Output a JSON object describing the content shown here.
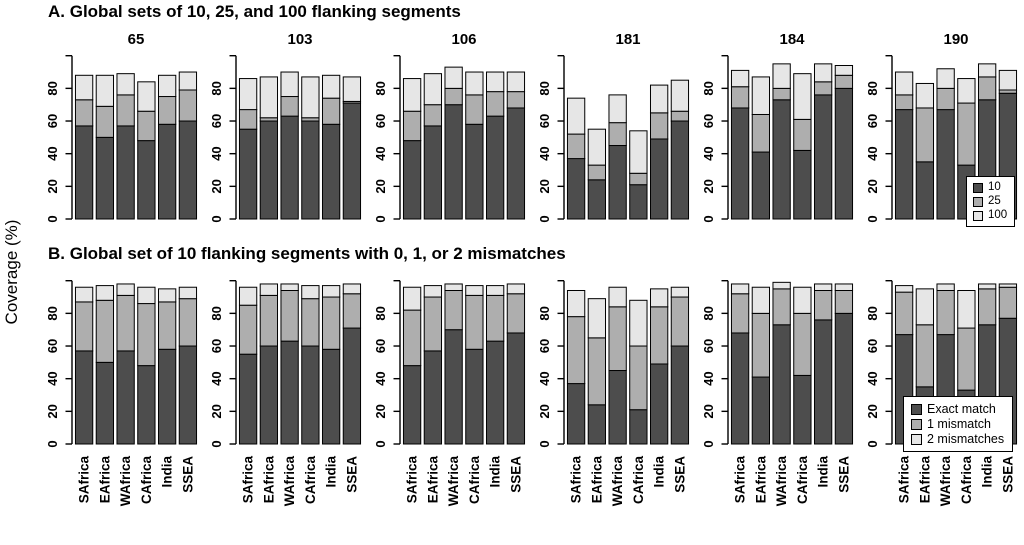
{
  "y_axis_label": "Coverage (%)",
  "colors": {
    "series_dark": "#4D4D4D",
    "series_mid": "#AEAEAE",
    "series_light": "#E6E6E6",
    "bar_border": "#000000",
    "background": "#FFFFFF"
  },
  "panels": [
    {
      "title": "A. Global sets of 10, 25, and 100 flanking segments",
      "legend": [
        "10",
        "25",
        "100"
      ]
    },
    {
      "title": "B. Global set of 10 flanking segments with 0, 1, or 2 mismatches",
      "legend": [
        "Exact match",
        "1 mismatch",
        "2 mismatches"
      ]
    }
  ],
  "chart_data": [
    {
      "type": "bar",
      "stacked": true,
      "panel": "A",
      "panel_title": "A. Global sets of 10, 25, and 100 flanking segments",
      "ylabel": "Coverage (%)",
      "ylim": [
        0,
        100
      ],
      "yticks": [
        0,
        20,
        40,
        60,
        80
      ],
      "grid": false,
      "legend_position": "bottom-right of last subplot",
      "categories": [
        "SAfrica",
        "EAfrica",
        "WAfrica",
        "CAfrica",
        "India",
        "SSEA"
      ],
      "series_names": [
        "10",
        "25",
        "100"
      ],
      "subplots": [
        {
          "title": "65",
          "series": [
            {
              "name": "10",
              "values": [
                57,
                50,
                57,
                48,
                58,
                60
              ]
            },
            {
              "name": "25",
              "values": [
                16,
                19,
                19,
                18,
                17,
                19
              ]
            },
            {
              "name": "100",
              "values": [
                15,
                19,
                13,
                18,
                13,
                11
              ]
            }
          ],
          "stack_totals": [
            88,
            88,
            89,
            84,
            88,
            90
          ]
        },
        {
          "title": "103",
          "series": [
            {
              "name": "10",
              "values": [
                55,
                60,
                63,
                60,
                58,
                71
              ]
            },
            {
              "name": "25",
              "values": [
                12,
                2,
                12,
                2,
                16,
                1
              ]
            },
            {
              "name": "100",
              "values": [
                19,
                25,
                15,
                25,
                14,
                15
              ]
            }
          ],
          "stack_totals": [
            86,
            87,
            90,
            87,
            88,
            87
          ]
        },
        {
          "title": "106",
          "series": [
            {
              "name": "10",
              "values": [
                48,
                57,
                70,
                58,
                63,
                68
              ]
            },
            {
              "name": "25",
              "values": [
                18,
                13,
                10,
                18,
                15,
                10
              ]
            },
            {
              "name": "100",
              "values": [
                20,
                19,
                13,
                14,
                12,
                12
              ]
            }
          ],
          "stack_totals": [
            86,
            89,
            93,
            90,
            90,
            90
          ]
        },
        {
          "title": "181",
          "series": [
            {
              "name": "10",
              "values": [
                37,
                24,
                45,
                21,
                49,
                60
              ]
            },
            {
              "name": "25",
              "values": [
                15,
                9,
                14,
                7,
                16,
                6
              ]
            },
            {
              "name": "100",
              "values": [
                22,
                22,
                17,
                26,
                17,
                19
              ]
            }
          ],
          "stack_totals": [
            74,
            55,
            76,
            54,
            82,
            85
          ]
        },
        {
          "title": "184",
          "series": [
            {
              "name": "10",
              "values": [
                68,
                41,
                73,
                42,
                76,
                80
              ]
            },
            {
              "name": "25",
              "values": [
                13,
                23,
                7,
                19,
                8,
                8
              ]
            },
            {
              "name": "100",
              "values": [
                10,
                23,
                15,
                28,
                11,
                6
              ]
            }
          ],
          "stack_totals": [
            91,
            87,
            95,
            89,
            95,
            94
          ]
        },
        {
          "title": "190",
          "series": [
            {
              "name": "10",
              "values": [
                67,
                35,
                67,
                33,
                73,
                77
              ]
            },
            {
              "name": "25",
              "values": [
                9,
                33,
                13,
                38,
                14,
                2
              ]
            },
            {
              "name": "100",
              "values": [
                14,
                15,
                12,
                15,
                8,
                12
              ]
            }
          ],
          "stack_totals": [
            90,
            83,
            92,
            86,
            95,
            91
          ]
        }
      ]
    },
    {
      "type": "bar",
      "stacked": true,
      "panel": "B",
      "panel_title": "B. Global set of 10 flanking segments with 0, 1, or 2 mismatches",
      "ylabel": "Coverage (%)",
      "ylim": [
        0,
        100
      ],
      "yticks": [
        0,
        20,
        40,
        60,
        80
      ],
      "grid": false,
      "legend_position": "bottom-right of last subplot",
      "categories": [
        "SAfrica",
        "EAfrica",
        "WAfrica",
        "CAfrica",
        "India",
        "SSEA"
      ],
      "series_names": [
        "Exact match",
        "1 mismatch",
        "2 mismatches"
      ],
      "subplots": [
        {
          "series": [
            {
              "name": "Exact match",
              "values": [
                57,
                50,
                57,
                48,
                58,
                60
              ]
            },
            {
              "name": "1 mismatch",
              "values": [
                30,
                38,
                34,
                38,
                29,
                29
              ]
            },
            {
              "name": "2 mismatches",
              "values": [
                9,
                9,
                7,
                10,
                8,
                7
              ]
            }
          ],
          "stack_totals": [
            96,
            97,
            98,
            96,
            95,
            96
          ]
        },
        {
          "series": [
            {
              "name": "Exact match",
              "values": [
                55,
                60,
                63,
                60,
                58,
                71
              ]
            },
            {
              "name": "1 mismatch",
              "values": [
                30,
                31,
                31,
                29,
                32,
                21
              ]
            },
            {
              "name": "2 mismatches",
              "values": [
                11,
                7,
                4,
                8,
                7,
                6
              ]
            }
          ],
          "stack_totals": [
            96,
            98,
            98,
            97,
            97,
            98
          ]
        },
        {
          "series": [
            {
              "name": "Exact match",
              "values": [
                48,
                57,
                70,
                58,
                63,
                68
              ]
            },
            {
              "name": "1 mismatch",
              "values": [
                34,
                33,
                24,
                33,
                28,
                24
              ]
            },
            {
              "name": "2 mismatches",
              "values": [
                14,
                7,
                4,
                6,
                6,
                6
              ]
            }
          ],
          "stack_totals": [
            96,
            97,
            98,
            97,
            97,
            98
          ]
        },
        {
          "series": [
            {
              "name": "Exact match",
              "values": [
                37,
                24,
                45,
                21,
                49,
                60
              ]
            },
            {
              "name": "1 mismatch",
              "values": [
                41,
                41,
                39,
                39,
                35,
                30
              ]
            },
            {
              "name": "2 mismatches",
              "values": [
                16,
                24,
                12,
                28,
                11,
                6
              ]
            }
          ],
          "stack_totals": [
            94,
            89,
            96,
            88,
            95,
            96
          ]
        },
        {
          "series": [
            {
              "name": "Exact match",
              "values": [
                68,
                41,
                73,
                42,
                76,
                80
              ]
            },
            {
              "name": "1 mismatch",
              "values": [
                24,
                39,
                22,
                38,
                18,
                14
              ]
            },
            {
              "name": "2 mismatches",
              "values": [
                6,
                16,
                4,
                16,
                4,
                4
              ]
            }
          ],
          "stack_totals": [
            98,
            96,
            99,
            96,
            98,
            98
          ]
        },
        {
          "series": [
            {
              "name": "Exact match",
              "values": [
                67,
                35,
                67,
                33,
                73,
                77
              ]
            },
            {
              "name": "1 mismatch",
              "values": [
                26,
                38,
                27,
                38,
                22,
                19
              ]
            },
            {
              "name": "2 mismatches",
              "values": [
                4,
                22,
                4,
                23,
                3,
                2
              ]
            }
          ],
          "stack_totals": [
            97,
            95,
            98,
            94,
            98,
            98
          ]
        }
      ]
    }
  ]
}
